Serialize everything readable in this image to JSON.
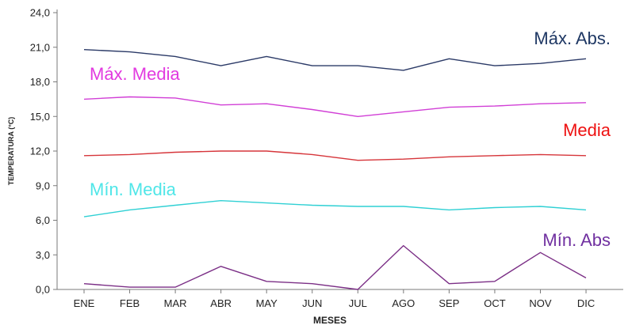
{
  "chart_data": {
    "type": "line",
    "title": "",
    "xlabel": "MESES",
    "ylabel": "TEMPERATURA (°C)",
    "categories": [
      "ENE",
      "FEB",
      "MAR",
      "ABR",
      "MAY",
      "JUN",
      "JUL",
      "AGO",
      "SEP",
      "OCT",
      "NOV",
      "DIC"
    ],
    "ylim": [
      0,
      24
    ],
    "yticks": [
      "0,0",
      "3,0",
      "6,0",
      "9,0",
      "12,0",
      "15,0",
      "18,0",
      "21,0",
      "24,0"
    ],
    "grid": false,
    "legend": "none",
    "series": [
      {
        "key": "max_abs",
        "name": "Máx. Abs.",
        "color": "#2b3a67",
        "label_color": "#1f3864",
        "values": [
          20.8,
          20.6,
          20.2,
          19.4,
          20.2,
          19.4,
          19.4,
          19.0,
          20.0,
          19.4,
          19.6,
          20.0
        ]
      },
      {
        "key": "max_media",
        "name": "Máx. Media",
        "color": "#d13fd6",
        "label_color": "#e23ae0",
        "values": [
          16.5,
          16.7,
          16.6,
          16.0,
          16.1,
          15.6,
          15.0,
          15.4,
          15.8,
          15.9,
          16.1,
          16.2
        ]
      },
      {
        "key": "media",
        "name": "Media",
        "color": "#d6353a",
        "label_color": "#ee1111",
        "values": [
          11.6,
          11.7,
          11.9,
          12.0,
          12.0,
          11.7,
          11.2,
          11.3,
          11.5,
          11.6,
          11.7,
          11.6
        ]
      },
      {
        "key": "min_media",
        "name": "Mín. Media",
        "color": "#2fd0d4",
        "label_color": "#4fe6e8",
        "values": [
          6.3,
          6.9,
          7.3,
          7.7,
          7.5,
          7.3,
          7.2,
          7.2,
          6.9,
          7.1,
          7.2,
          6.9
        ]
      },
      {
        "key": "min_abs",
        "name": "Mín. Abs",
        "color": "#7b2f86",
        "label_color": "#7030a0",
        "values": [
          0.5,
          0.2,
          0.2,
          2.0,
          0.7,
          0.5,
          0.0,
          3.8,
          0.5,
          0.7,
          3.2,
          1.0
        ]
      }
    ]
  }
}
